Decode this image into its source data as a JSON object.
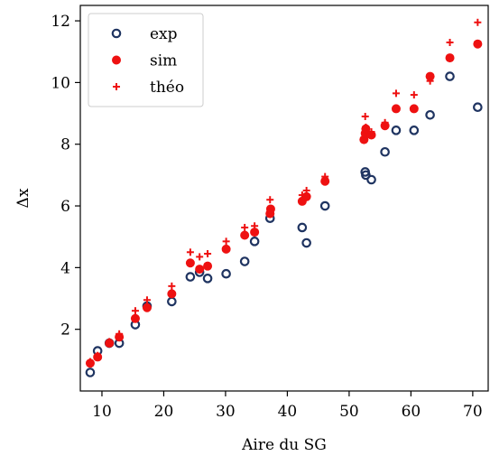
{
  "chart_data": {
    "type": "scatter",
    "title": "",
    "xlabel": "Aire du SG",
    "ylabel": "Δx",
    "xlim": [
      6.5,
      72.5
    ],
    "ylim": [
      0.0,
      12.5
    ],
    "xticks": [
      10,
      20,
      30,
      40,
      50,
      60,
      70
    ],
    "yticks": [
      2,
      4,
      6,
      8,
      10,
      12
    ],
    "grid": false,
    "legend": "top-left",
    "series": [
      {
        "name": "exp",
        "marker": "open-circle",
        "color": "#1f3461",
        "points": [
          [
            8.1,
            0.6
          ],
          [
            9.3,
            1.3
          ],
          [
            11.2,
            1.55
          ],
          [
            12.8,
            1.55
          ],
          [
            15.4,
            2.15
          ],
          [
            17.3,
            2.75
          ],
          [
            21.3,
            2.9
          ],
          [
            24.3,
            3.7
          ],
          [
            25.8,
            3.85
          ],
          [
            27.1,
            3.65
          ],
          [
            30.1,
            3.8
          ],
          [
            33.1,
            4.2
          ],
          [
            34.7,
            4.85
          ],
          [
            37.2,
            5.6
          ],
          [
            42.4,
            5.3
          ],
          [
            43.1,
            4.8
          ],
          [
            46.1,
            6.0
          ],
          [
            52.6,
            7.1
          ],
          [
            52.7,
            7.0
          ],
          [
            53.6,
            6.85
          ],
          [
            55.8,
            7.75
          ],
          [
            57.6,
            8.45
          ],
          [
            60.5,
            8.45
          ],
          [
            63.1,
            8.95
          ],
          [
            66.3,
            10.2
          ],
          [
            70.8,
            9.2
          ]
        ]
      },
      {
        "name": "sim",
        "marker": "filled-circle",
        "color": "#ee1111",
        "points": [
          [
            8.1,
            0.9
          ],
          [
            9.3,
            1.1
          ],
          [
            11.2,
            1.55
          ],
          [
            12.8,
            1.75
          ],
          [
            15.4,
            2.35
          ],
          [
            17.3,
            2.7
          ],
          [
            21.3,
            3.15
          ],
          [
            24.3,
            4.15
          ],
          [
            25.8,
            3.95
          ],
          [
            27.1,
            4.05
          ],
          [
            30.1,
            4.6
          ],
          [
            33.1,
            5.05
          ],
          [
            34.7,
            5.15
          ],
          [
            37.2,
            5.75
          ],
          [
            37.3,
            5.9
          ],
          [
            42.4,
            6.15
          ],
          [
            43.1,
            6.3
          ],
          [
            46.1,
            6.8
          ],
          [
            52.4,
            8.15
          ],
          [
            52.6,
            8.35
          ],
          [
            52.7,
            8.5
          ],
          [
            53.6,
            8.3
          ],
          [
            55.8,
            8.6
          ],
          [
            57.6,
            9.15
          ],
          [
            60.5,
            9.15
          ],
          [
            63.1,
            10.2
          ],
          [
            66.3,
            10.8
          ],
          [
            70.8,
            11.25
          ]
        ]
      },
      {
        "name": "théo",
        "marker": "plus",
        "color": "#ee1111",
        "points": [
          [
            8.1,
            0.95
          ],
          [
            9.3,
            1.15
          ],
          [
            11.2,
            1.6
          ],
          [
            12.8,
            1.85
          ],
          [
            15.4,
            2.6
          ],
          [
            17.3,
            2.95
          ],
          [
            21.3,
            3.4
          ],
          [
            24.3,
            4.5
          ],
          [
            25.8,
            4.35
          ],
          [
            27.1,
            4.45
          ],
          [
            30.1,
            4.85
          ],
          [
            33.1,
            5.3
          ],
          [
            34.7,
            5.35
          ],
          [
            37.2,
            6.2
          ],
          [
            42.4,
            6.35
          ],
          [
            43.1,
            6.5
          ],
          [
            46.1,
            6.95
          ],
          [
            52.6,
            8.9
          ],
          [
            52.7,
            8.55
          ],
          [
            53.6,
            8.4
          ],
          [
            55.8,
            8.7
          ],
          [
            57.6,
            9.65
          ],
          [
            60.5,
            9.6
          ],
          [
            63.1,
            10.05
          ],
          [
            66.3,
            11.3
          ],
          [
            70.8,
            11.95
          ]
        ]
      }
    ]
  }
}
